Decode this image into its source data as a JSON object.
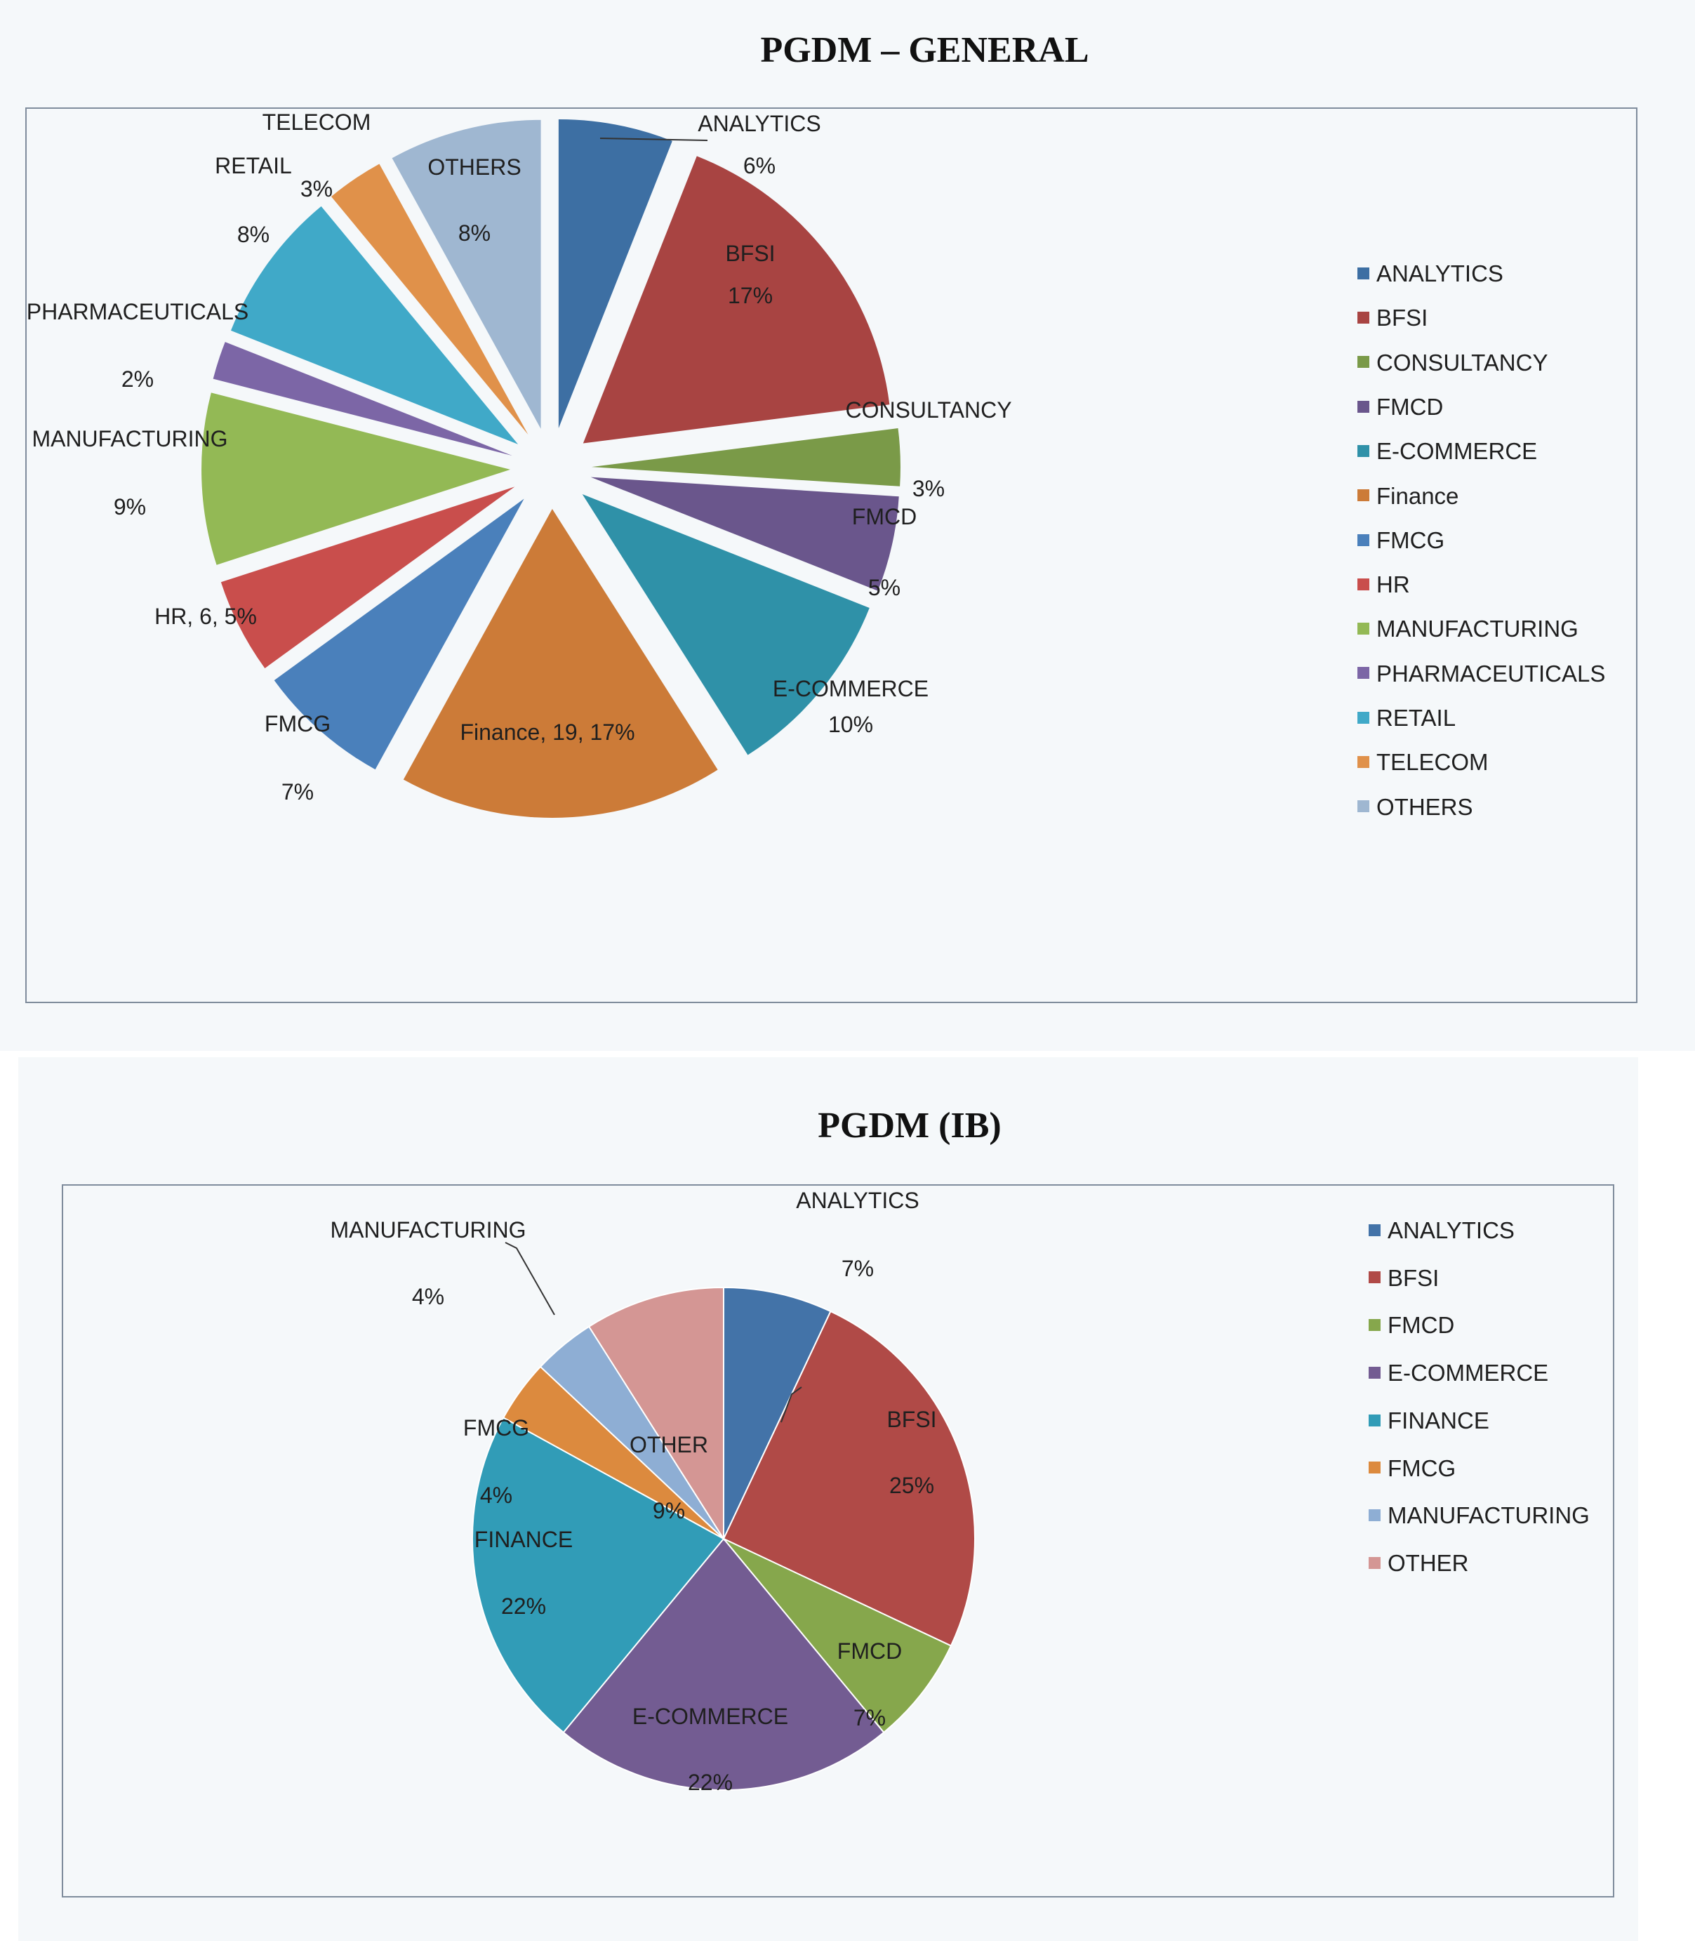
{
  "chart_data": [
    {
      "type": "pie",
      "title": "PGDM – GENERAL",
      "exploded": true,
      "legend_position": "right",
      "slices": [
        {
          "name": "ANALYTICS",
          "percent": 6,
          "color": "#3d6fa3",
          "label": [
            "ANALYTICS",
            "6%"
          ]
        },
        {
          "name": "BFSI",
          "percent": 17,
          "color": "#a84442",
          "label": [
            "BFSI",
            "17%"
          ]
        },
        {
          "name": "CONSULTANCY",
          "percent": 3,
          "color": "#7a9a48",
          "label": [
            "CONSULTANCY",
            "3%"
          ]
        },
        {
          "name": "FMCD",
          "percent": 5,
          "color": "#6a568c",
          "label": [
            "FMCD",
            "5%"
          ]
        },
        {
          "name": "E-COMMERCE",
          "percent": 10,
          "color": "#2f91a8",
          "label": [
            "E-COMMERCE",
            "10%"
          ]
        },
        {
          "name": "Finance",
          "value": 19,
          "percent": 17,
          "color": "#cc7b38",
          "label": [
            "Finance, 19, 17%"
          ]
        },
        {
          "name": "FMCG",
          "percent": 7,
          "color": "#4a80bb",
          "label": [
            "FMCG",
            "7%"
          ]
        },
        {
          "name": "HR",
          "value": 6,
          "percent": 5,
          "color": "#c94e4c",
          "label": [
            "HR, 6, 5%"
          ]
        },
        {
          "name": "MANUFACTURING",
          "percent": 9,
          "color": "#93b955",
          "label": [
            "MANUFACTURING",
            "9%"
          ]
        },
        {
          "name": "PHARMACEUTICALS",
          "percent": 2,
          "color": "#7c66a6",
          "label": [
            "PHARMACEUTICALS",
            "2%"
          ]
        },
        {
          "name": "RETAIL",
          "percent": 8,
          "color": "#40a9c8",
          "label": [
            "RETAIL",
            "8%"
          ]
        },
        {
          "name": "TELECOM",
          "percent": 3,
          "color": "#e0914a",
          "label": [
            "TELECOM",
            "3%"
          ]
        },
        {
          "name": "OTHERS",
          "percent": 8,
          "color": "#9fb7d1",
          "label": [
            "OTHERS",
            "8%"
          ]
        }
      ]
    },
    {
      "type": "pie",
      "title": "PGDM (IB)",
      "exploded": false,
      "legend_position": "right",
      "slices": [
        {
          "name": "ANALYTICS",
          "percent": 7,
          "color": "#4373a8",
          "label": [
            "ANALYTICS",
            "7%"
          ]
        },
        {
          "name": "BFSI",
          "percent": 25,
          "color": "#b04a47",
          "label": [
            "BFSI",
            "25%"
          ]
        },
        {
          "name": "FMCD",
          "percent": 7,
          "color": "#86a74c",
          "label": [
            "FMCD",
            "7%"
          ]
        },
        {
          "name": "E-COMMERCE",
          "percent": 22,
          "color": "#735c92",
          "label": [
            "E-COMMERCE",
            "22%"
          ]
        },
        {
          "name": "FINANCE",
          "percent": 22,
          "color": "#319cb7",
          "label": [
            "FINANCE",
            "22%"
          ]
        },
        {
          "name": "FMCG",
          "percent": 4,
          "color": "#dc8a3e",
          "label": [
            "FMCG",
            "4%"
          ]
        },
        {
          "name": "MANUFACTURING",
          "percent": 4,
          "color": "#8eaed4",
          "label": [
            "MANUFACTURING",
            "4%"
          ]
        },
        {
          "name": "OTHER",
          "percent": 9,
          "color": "#d49694",
          "label": [
            "OTHER",
            "9%"
          ]
        }
      ]
    }
  ]
}
